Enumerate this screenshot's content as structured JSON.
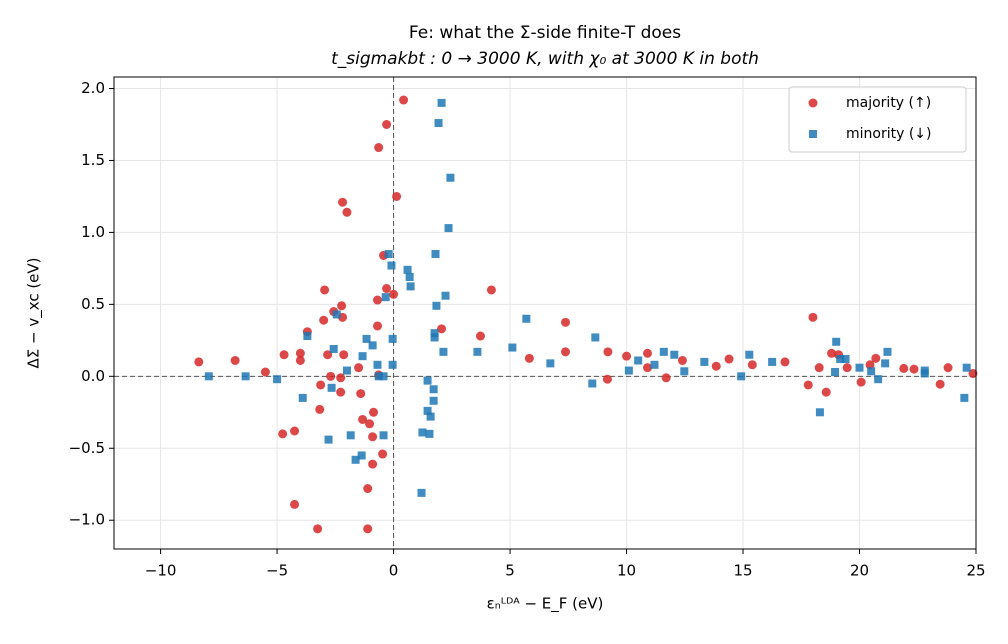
{
  "chart_data": {
    "type": "scatter",
    "title": "Fe: what the Σ-side finite-T does",
    "subtitle": "t_sigmakbt : 0 → 3000 K, with χ₀ at 3000 K in both",
    "x_label": "εₙᴸᴰᴬ − E_F  (eV)",
    "y_label": "ΔΣ − v_xc   (eV)",
    "xlim": [
      -12,
      25
    ],
    "ylim": [
      -1.2,
      2.08
    ],
    "xticks": [
      {
        "value": -10,
        "label": "−10"
      },
      {
        "value": -5,
        "label": "−5"
      },
      {
        "value": 0,
        "label": "0"
      },
      {
        "value": 5,
        "label": "5"
      },
      {
        "value": 10,
        "label": "10"
      },
      {
        "value": 15,
        "label": "15"
      },
      {
        "value": 20,
        "label": "20"
      },
      {
        "value": 25,
        "label": "25"
      }
    ],
    "yticks": [
      {
        "value": -1,
        "label": "−1.0"
      },
      {
        "value": -0.5,
        "label": "−0.5"
      },
      {
        "value": 0,
        "label": "0.0"
      },
      {
        "value": 0.5,
        "label": "0.5"
      },
      {
        "value": 1,
        "label": "1.0"
      },
      {
        "value": 1.5,
        "label": "1.5"
      },
      {
        "value": 2,
        "label": "2.0"
      }
    ],
    "grid": true,
    "hline": 0,
    "vline": 0,
    "legend": "upper right",
    "series": [
      {
        "name": "majority (↑)",
        "color": "#d62728",
        "marker": "circle",
        "x": [
          -8.36,
          -6.8,
          -5.5,
          -4.7,
          -4.76,
          -4.25,
          -4.25,
          -4.0,
          -4.0,
          -3.7,
          -3.26,
          -3.17,
          -3.13,
          -3.0,
          -2.96,
          -2.83,
          -2.7,
          -2.57,
          -2.27,
          -2.27,
          -2.23,
          -2.19,
          -2.19,
          -2.14,
          -2.0,
          -1.5,
          -1.41,
          -1.33,
          -1.11,
          -1.11,
          -1.03,
          -0.9,
          -0.9,
          -0.86,
          -0.69,
          -0.69,
          -0.64,
          -0.64,
          -0.47,
          -0.43,
          -0.3,
          -0.3,
          0,
          0.13,
          0.43,
          2.06,
          3.73,
          4.2,
          5.83,
          7.38,
          7.38,
          9.2,
          9.18,
          10.0,
          10.9,
          10.9,
          11.7,
          12.4,
          13.85,
          14.4,
          15.4,
          16.8,
          17.8,
          18.0,
          18.27,
          18.57,
          18.8,
          19.1,
          19.47,
          20.07,
          20.45,
          20.7,
          21.9,
          22.34,
          23.46,
          23.8,
          24.87
        ],
        "values": [
          0.1,
          0.11,
          0.03,
          0.15,
          -0.4,
          -0.38,
          -0.89,
          0.16,
          0.11,
          0.31,
          -1.06,
          -0.23,
          -0.06,
          0.39,
          0.6,
          0.15,
          0.0,
          0.45,
          -0.11,
          -0.01,
          0.49,
          0.41,
          1.21,
          0.15,
          1.14,
          0.06,
          -0.12,
          -0.3,
          -0.78,
          -1.06,
          -0.33,
          -0.42,
          -0.61,
          -0.25,
          0.35,
          0.53,
          1.59,
          0.01,
          -0.54,
          0.84,
          1.75,
          0.61,
          0.57,
          1.25,
          1.92,
          0.33,
          0.28,
          0.6,
          0.125,
          0.17,
          0.375,
          0.17,
          -0.02,
          0.14,
          0.16,
          0.06,
          -0.01,
          0.11,
          0.07,
          0.12,
          0.08,
          0.1,
          -0.06,
          0.41,
          0.06,
          -0.11,
          0.16,
          0.15,
          0.06,
          -0.04,
          0.08,
          0.125,
          0.055,
          0.05,
          -0.055,
          0.06,
          0.02
        ]
      },
      {
        "name": "minority (↓)",
        "color": "#1f77b4",
        "marker": "square",
        "x": [
          -7.93,
          -6.35,
          -5.0,
          -3.9,
          -3.7,
          -2.79,
          -2.66,
          -2.57,
          -2.44,
          -2.0,
          -1.84,
          -1.63,
          -1.37,
          -1.33,
          -1.16,
          -0.9,
          -0.69,
          -0.64,
          -0.43,
          -0.43,
          -0.34,
          -0.21,
          -0.09,
          -0.04,
          -0.04,
          0.6,
          0.69,
          0.73,
          1.2,
          1.24,
          1.46,
          1.46,
          1.54,
          1.59,
          1.72,
          1.72,
          1.76,
          1.76,
          1.8,
          1.84,
          1.93,
          2.06,
          2.14,
          2.23,
          2.36,
          2.44,
          3.6,
          5.1,
          5.7,
          6.73,
          8.53,
          8.66,
          10.1,
          10.5,
          11.2,
          11.6,
          12.05,
          12.48,
          13.34,
          14.92,
          15.27,
          16.25,
          18.3,
          19.0,
          18.95,
          19.17,
          19.4,
          20.0,
          20.5,
          20.8,
          21.1,
          21.2,
          22.8,
          22.8,
          24.5,
          24.6
        ],
        "values": [
          0.0,
          0.0,
          -0.02,
          -0.15,
          0.28,
          -0.44,
          -0.08,
          0.19,
          0.43,
          0.04,
          -0.41,
          -0.58,
          -0.55,
          0.14,
          0.26,
          0.215,
          0.08,
          0.0,
          -0.41,
          0.0,
          0.55,
          0.85,
          0.77,
          0.08,
          0.26,
          0.74,
          0.69,
          0.625,
          -0.81,
          -0.39,
          -0.24,
          -0.03,
          -0.4,
          -0.28,
          -0.09,
          -0.17,
          0.3,
          0.27,
          0.85,
          0.49,
          1.76,
          1.9,
          0.17,
          0.56,
          1.03,
          1.38,
          0.17,
          0.2,
          0.4,
          0.09,
          -0.05,
          0.27,
          0.04,
          0.11,
          0.08,
          0.17,
          0.15,
          0.035,
          0.1,
          0.0,
          0.15,
          0.1,
          -0.25,
          0.24,
          0.03,
          0.12,
          0.12,
          0.06,
          0.035,
          -0.02,
          0.09,
          0.17,
          0.02,
          0.04,
          -0.15,
          0.06
        ]
      }
    ]
  }
}
